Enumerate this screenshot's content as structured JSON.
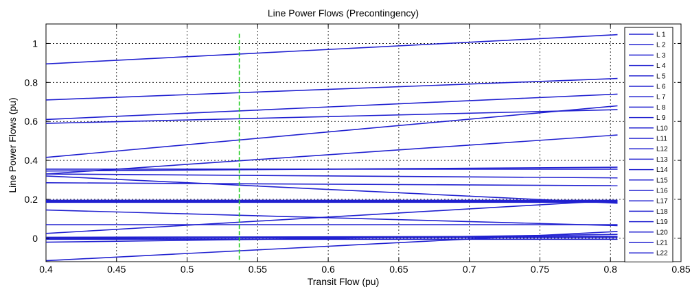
{
  "chart_data": {
    "type": "line",
    "title": "Line Power Flows (Precontingency)",
    "xlabel": "Transit Flow (pu)",
    "ylabel": "Line Power Flows (pu)",
    "xlim": [
      0.4,
      0.85
    ],
    "ylim": [
      -0.12,
      1.1
    ],
    "xticks": [
      0.4,
      0.45,
      0.5,
      0.55,
      0.6,
      0.65,
      0.7,
      0.75,
      0.8,
      0.85
    ],
    "xtick_labels": [
      "0.4",
      "0.45",
      "0.5",
      "0.55",
      "0.6",
      "0.65",
      "0.7",
      "0.75",
      "0.8",
      "0.85"
    ],
    "yticks": [
      0,
      0.2,
      0.4,
      0.6,
      0.8,
      1
    ],
    "ytick_labels": [
      "0",
      "0.2",
      "0.4",
      "0.6",
      "0.8",
      "1"
    ],
    "grid": true,
    "legend_position": "right",
    "line_color": "#2020d0",
    "marker_line": {
      "x": 0.537,
      "color": "#22cc22",
      "style": "dashed"
    },
    "x": [
      0.4,
      0.805
    ],
    "series": [
      {
        "name": "L 1",
        "values": [
          0.895,
          1.045
        ]
      },
      {
        "name": "L 2",
        "values": [
          0.71,
          0.82
        ]
      },
      {
        "name": "L 3",
        "values": [
          0.61,
          0.74
        ]
      },
      {
        "name": "L 4",
        "values": [
          0.59,
          0.66
        ]
      },
      {
        "name": "L 5",
        "values": [
          0.415,
          0.68
        ]
      },
      {
        "name": "L 6",
        "values": [
          0.33,
          0.53
        ]
      },
      {
        "name": "L 7",
        "values": [
          0.355,
          0.355
        ]
      },
      {
        "name": "L 8",
        "values": [
          0.345,
          0.365
        ]
      },
      {
        "name": "L 9",
        "values": [
          0.33,
          0.31
        ]
      },
      {
        "name": "L10",
        "values": [
          0.32,
          0.18
        ]
      },
      {
        "name": "L11",
        "values": [
          0.285,
          0.27
        ]
      },
      {
        "name": "L12",
        "values": [
          0.195,
          0.195
        ]
      },
      {
        "name": "L13",
        "values": [
          0.19,
          0.19
        ]
      },
      {
        "name": "L14",
        "values": [
          0.185,
          0.185
        ]
      },
      {
        "name": "L15",
        "values": [
          0.145,
          0.065
        ]
      },
      {
        "name": "L16",
        "values": [
          0.07,
          0.07
        ]
      },
      {
        "name": "L17",
        "values": [
          0.025,
          0.195
        ]
      },
      {
        "name": "L18",
        "values": [
          0.0,
          0.005
        ]
      },
      {
        "name": "L19",
        "values": [
          -0.02,
          0.02
        ]
      },
      {
        "name": "L20",
        "values": [
          -0.115,
          0.035
        ]
      },
      {
        "name": "L21",
        "values": [
          0.005,
          0.01
        ]
      },
      {
        "name": "L22",
        "values": [
          -0.005,
          -0.005
        ]
      }
    ]
  }
}
